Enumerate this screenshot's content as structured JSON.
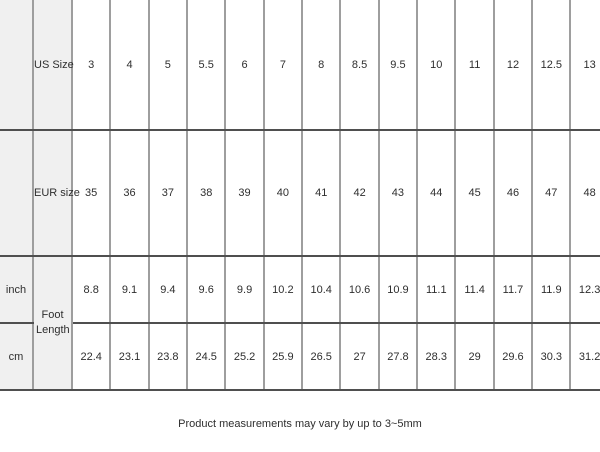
{
  "chart_data": {
    "type": "table",
    "columns_per_row": 14,
    "rows": {
      "us": {
        "label": "US Size",
        "values": [
          "3",
          "4",
          "5",
          "5.5",
          "6",
          "7",
          "8",
          "8.5",
          "9.5",
          "10",
          "11",
          "12",
          "12.5",
          "13"
        ]
      },
      "eur": {
        "label": "EUR size",
        "values": [
          "35",
          "36",
          "37",
          "38",
          "39",
          "40",
          "41",
          "42",
          "43",
          "44",
          "45",
          "46",
          "47",
          "48"
        ]
      },
      "inch": {
        "label": "inch",
        "values": [
          "8.8",
          "9.1",
          "9.4",
          "9.6",
          "9.9",
          "10.2",
          "10.4",
          "10.6",
          "10.9",
          "11.1",
          "11.4",
          "11.7",
          "11.9",
          "12.3"
        ]
      },
      "cm": {
        "label": "cm",
        "values": [
          "22.4",
          "23.1",
          "23.8",
          "24.5",
          "25.2",
          "25.9",
          "26.5",
          "27",
          "27.8",
          "28.3",
          "29",
          "29.6",
          "30.3",
          "31.2"
        ]
      }
    },
    "merged_row_group_label": "Foot Length",
    "layout": {
      "grid": "on",
      "label_columns": 2,
      "data_columns": 14,
      "right_edge_clipped": true,
      "top_border": "none"
    }
  },
  "footnote": "Product measurements may vary by up to 3~5mm",
  "colors": {
    "label_cell_bg": "#f0f0f0",
    "grid_vertical": "#9e9e9e",
    "grid_horizontal": "#4f4f4f",
    "text": "#2e2e2e",
    "background": "#ffffff"
  }
}
